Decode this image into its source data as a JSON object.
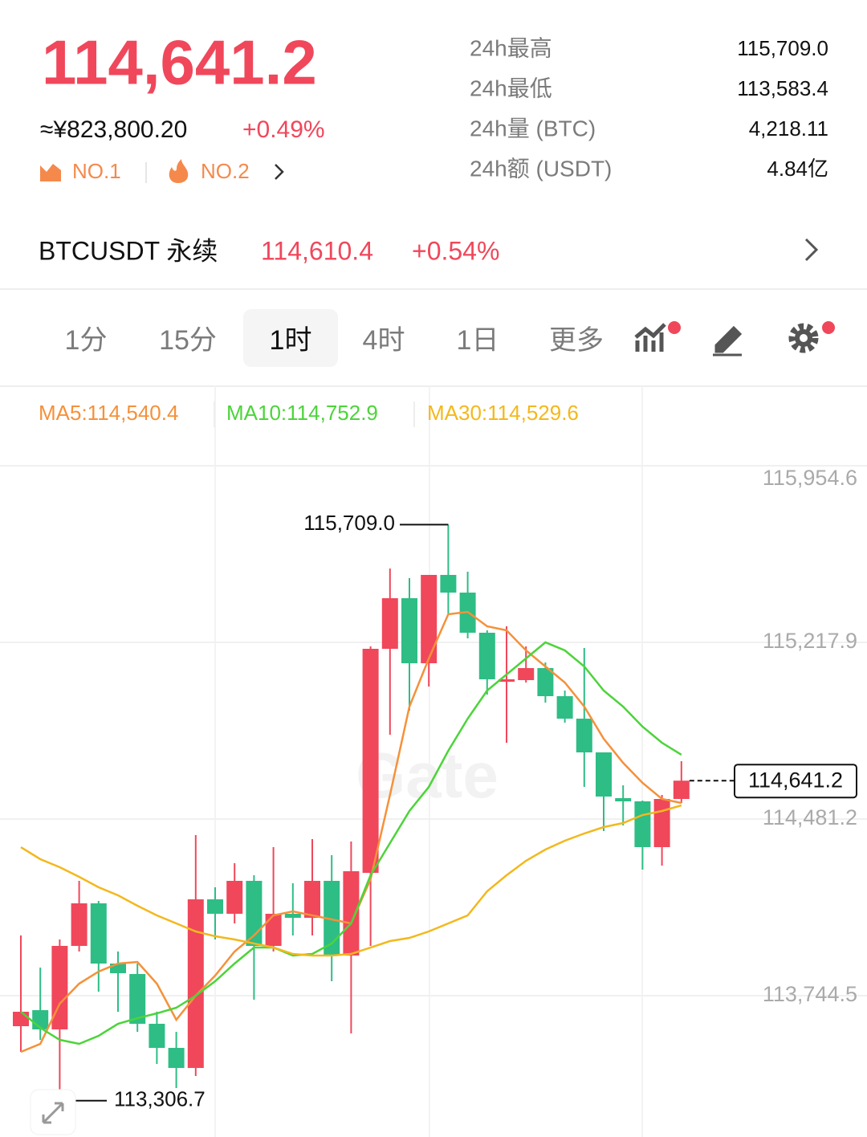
{
  "header": {
    "price": "114,641.2",
    "cny": "≈¥823,800.20",
    "change": "+0.49%",
    "badges": [
      "NO.1",
      "NO.2"
    ],
    "stats": [
      {
        "label": "24h最高",
        "value": "115,709.0"
      },
      {
        "label": "24h最低",
        "value": "113,583.4"
      },
      {
        "label": "24h量 (BTC)",
        "value": "4,218.11"
      },
      {
        "label": "24h额 (USDT)",
        "value": "4.84亿"
      }
    ]
  },
  "contract": {
    "name": "BTCUSDT 永续",
    "price": "114,610.4",
    "change": "+0.54%"
  },
  "tabs": [
    "1分",
    "15分",
    "1时",
    "4时",
    "1日",
    "更多"
  ],
  "selected_tab": 2,
  "chart_data": {
    "type": "candlestick",
    "watermark": "Gate",
    "up_color": "#f0475b",
    "down_color": "#2ebd85",
    "open": [
      113617.3,
      113684.2,
      113603.9,
      113952.1,
      114129.6,
      113878.5,
      113834.9,
      113627.3,
      113526.8,
      113443.1,
      114146.3,
      114086.1,
      114223.4,
      113952.1,
      114086.1,
      114069.3,
      114223.4,
      113911.9,
      114256.8,
      115191.1,
      115402.1,
      115130.8,
      115499.2,
      115425.5,
      115258.1,
      115053.8,
      115060.5,
      115110.7,
      114993.5,
      114899.8,
      114759.1,
      114568.3,
      114554.9,
      114364.0,
      114564.9
    ],
    "high": [
      113995.7,
      113861.7,
      113978.9,
      114223.4,
      114139.6,
      113928.7,
      113878.5,
      113677.5,
      113593.8,
      114414.2,
      114196.6,
      114297.0,
      114246.8,
      114364.0,
      114213.3,
      114397.5,
      114330.5,
      114387.4,
      115201.2,
      115526.0,
      115485.8,
      115499.2,
      115709.0,
      115512.6,
      115268.1,
      115284.9,
      115201.2,
      115134.2,
      115017.0,
      115194.5,
      114759.1,
      114621.8,
      114558.2,
      114581.7,
      114722.3
    ],
    "low": [
      113510.1,
      113560.3,
      113306.7,
      113928.7,
      113761.2,
      113677.5,
      113593.8,
      113459.9,
      113359.4,
      113409.6,
      113978.9,
      114045.9,
      113727.8,
      113928.7,
      113995.7,
      113995.7,
      113804.8,
      113587.1,
      113952.1,
      114832.8,
      114933.3,
      115033.7,
      115335.1,
      115234.6,
      115000.2,
      114799.3,
      115050.5,
      114966.7,
      114883.0,
      114615.1,
      114431.0,
      114454.4,
      114270.2,
      114287.0,
      114548.2
    ],
    "close": [
      113677.5,
      113603.9,
      113952.1,
      114129.6,
      113878.5,
      113838.3,
      113627.3,
      113526.8,
      113443.1,
      114146.3,
      114086.1,
      114223.4,
      113952.1,
      114086.1,
      114069.3,
      114223.4,
      113911.9,
      114263.5,
      115191.1,
      115402.1,
      115130.8,
      115499.2,
      115425.5,
      115258.1,
      115063.9,
      115063.9,
      115110.7,
      114993.5,
      114899.8,
      114759.1,
      114575.0,
      114554.9,
      114364.0,
      114564.9,
      114641.2
    ],
    "series": [
      {
        "name": "MA5:114,540.4",
        "color": "#f5913a",
        "values": [
          113510.1,
          113543.6,
          113711.0,
          113794.7,
          113845.0,
          113878.5,
          113885.1,
          113794.7,
          113644.0,
          113744.5,
          113828.2,
          113928.7,
          113995.7,
          114079.4,
          114096.1,
          114079.4,
          114062.6,
          114045.9,
          114230.1,
          114581.7,
          114950.0,
          115150.9,
          115335.1,
          115345.1,
          115284.9,
          115268.1,
          115184.4,
          115117.4,
          115050.5,
          114950.0,
          114816.1,
          114715.6,
          114631.9,
          114564.9,
          114548.2
        ]
      },
      {
        "name": "MA10:114,752.9",
        "color": "#4cd43a",
        "values": [
          113677.5,
          113610.6,
          113560.3,
          113543.6,
          113577.1,
          113627.3,
          113650.7,
          113670.8,
          113694.3,
          113744.5,
          113804.8,
          113878.5,
          113945.4,
          113945.4,
          113911.9,
          113918.6,
          113962.2,
          114045.9,
          114246.8,
          114380.7,
          114514.7,
          114615.1,
          114765.8,
          114899.8,
          115017.0,
          115083.9,
          115150.9,
          115217.9,
          115184.4,
          115117.4,
          115017.0,
          114950.0,
          114866.3,
          114799.3,
          114749.1
        ]
      },
      {
        "name": "MA30:114,529.6",
        "color": "#f3b81d",
        "values": [
          114364.0,
          114313.8,
          114280.3,
          114240.1,
          114196.6,
          114163.1,
          114119.6,
          114079.4,
          114045.9,
          114012.4,
          113992.3,
          113978.9,
          113962.2,
          113945.4,
          113918.6,
          113911.9,
          113911.9,
          113918.6,
          113945.4,
          113972.2,
          113985.6,
          114012.4,
          114045.9,
          114079.4,
          114179.8,
          114246.8,
          114307.1,
          114354.0,
          114390.8,
          114420.9,
          114447.7,
          114464.5,
          114497.9,
          114514.7,
          114538.1
        ]
      }
    ],
    "ylim": [
      113155.2,
      116088.5
    ],
    "yticks": [
      {
        "value": 113744.5,
        "label": "113,744.5"
      },
      {
        "value": 114481.2,
        "label": "114,481.2"
      },
      {
        "value": 115217.9,
        "label": "115,217.9"
      },
      {
        "value": 115954.6,
        "label": "115,954.6"
      }
    ],
    "grid": true,
    "max_label": {
      "value": 115709.0,
      "label": "115,709.0"
    },
    "min_label": {
      "value": 113306.7,
      "label": "113,306.7"
    },
    "last_price": {
      "value": 114641.2,
      "label": "114,641.2"
    }
  }
}
